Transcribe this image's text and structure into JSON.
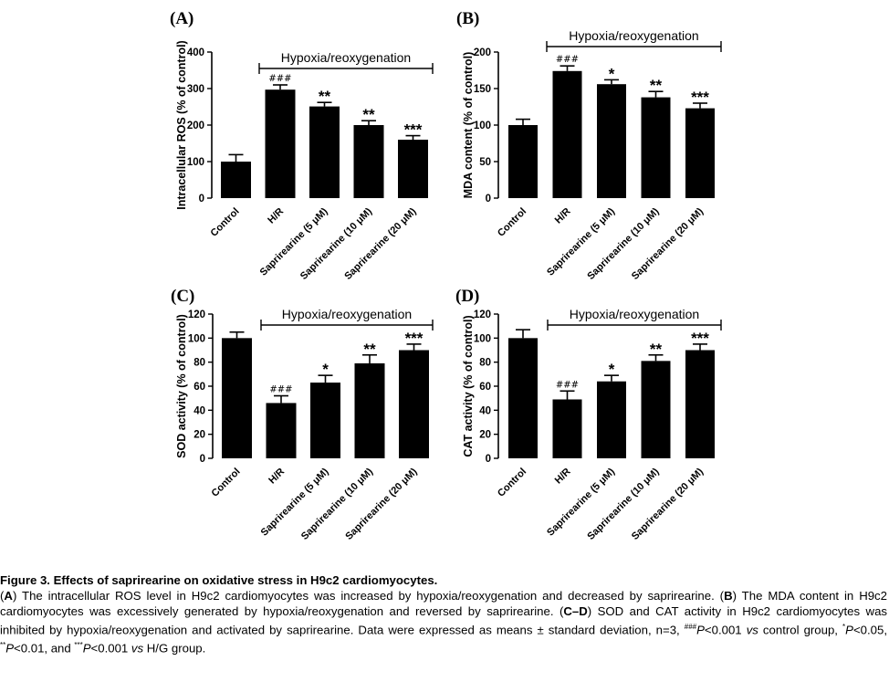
{
  "chart_data": [
    {
      "panel_label": "(A)",
      "type": "bar",
      "ylabel": "Intracellular ROS (% of control)",
      "ylim": [
        0,
        400
      ],
      "yticks": [
        0,
        100,
        200,
        300,
        400
      ],
      "categories": [
        "Control",
        "H/R",
        "Saprirearine (5 μM)",
        "Saprirearine (10 μM)",
        "Saprirearine (20 μM)"
      ],
      "values": [
        100,
        297,
        251,
        200,
        160
      ],
      "errors": [
        19,
        13,
        11,
        12,
        11
      ],
      "annotations": [
        "",
        "###",
        "**",
        "**",
        "***"
      ],
      "bracket_label": "Hypoxia/reoxygenation",
      "bar_color": "#000000"
    },
    {
      "panel_label": "(B)",
      "type": "bar",
      "ylabel": "MDA content (% of control)",
      "ylim": [
        0,
        200
      ],
      "yticks": [
        0,
        50,
        100,
        150,
        200
      ],
      "categories": [
        "Control",
        "H/R",
        "Saprirearine (5 μM)",
        "Saprirearine (10 μM)",
        "Saprirearine (20 μM)"
      ],
      "values": [
        100,
        174,
        156,
        138,
        123
      ],
      "errors": [
        8,
        7,
        6,
        8,
        7
      ],
      "annotations": [
        "",
        "###",
        "*",
        "**",
        "***"
      ],
      "bracket_label": "Hypoxia/reoxygenation",
      "bar_color": "#000000"
    },
    {
      "panel_label": "(C)",
      "type": "bar",
      "ylabel": "SOD activity (% of control)",
      "ylim": [
        0,
        120
      ],
      "yticks": [
        0,
        20,
        40,
        60,
        80,
        100,
        120
      ],
      "categories": [
        "Control",
        "H/R",
        "Saprirearine (5 μM)",
        "Saprirearine (10 μM)",
        "Saprirearine (20 μM)"
      ],
      "values": [
        100,
        46,
        63,
        79,
        90
      ],
      "errors": [
        5,
        6,
        6,
        7,
        5
      ],
      "annotations": [
        "",
        "###",
        "*",
        "**",
        "***"
      ],
      "bracket_label": "Hypoxia/reoxygenation",
      "bar_color": "#000000"
    },
    {
      "panel_label": "(D)",
      "type": "bar",
      "ylabel": "CAT activity (% of control)",
      "ylim": [
        0,
        120
      ],
      "yticks": [
        0,
        20,
        40,
        60,
        80,
        100,
        120
      ],
      "categories": [
        "Control",
        "H/R",
        "Saprirearine (5 μM)",
        "Saprirearine (10 μM)",
        "Saprirearine (20 μM)"
      ],
      "values": [
        100,
        49,
        64,
        81,
        90
      ],
      "errors": [
        7,
        7,
        5,
        5,
        5
      ],
      "annotations": [
        "",
        "###",
        "*",
        "**",
        "***"
      ],
      "bracket_label": "Hypoxia/reoxygenation",
      "bar_color": "#000000"
    }
  ],
  "caption": {
    "title": "Figure 3. Effects of saprirearine on oxidative stress in H9c2 cardiomyocytes.",
    "body": {
      "a_label": "A",
      "a_text": ") The intracellular ROS level in H9c2 cardiomyocytes was increased by hypoxia/reoxygenation and decreased by saprirearine. (",
      "b_label": "B",
      "b_text": ") The MDA content in H9c2 cardiomyocytes was excessively generated by hypoxia/reoxygenation and reversed by saprirearine. (",
      "cd_label": "C–D",
      "cd_text": ") SOD and CAT activity in H9c2 cardiomyocytes was inhibited by hypoxia/reoxygenation and activated by saprirearine. Data were expressed as means ± standard deviation, n=3, ",
      "sup1": "###",
      "p1": "P",
      "t1": "<0.001 ",
      "vs1": "vs",
      "t2": " control group, ",
      "sup2": "*",
      "p2": "P",
      "t3": "<0.05, ",
      "sup3": "**",
      "p3": "P",
      "t4": "<0.01, and ",
      "sup4": "***",
      "p4": "P",
      "t5": "<0.001 ",
      "vs2": "vs",
      "t6": " H/G group."
    }
  }
}
